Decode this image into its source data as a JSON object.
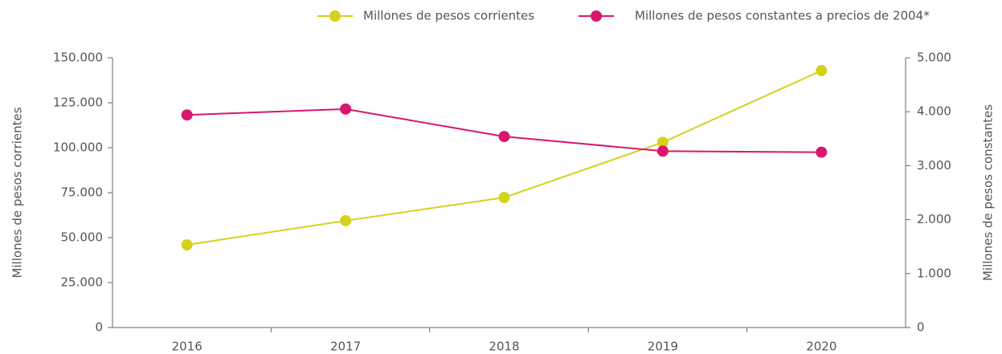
{
  "chart_data": {
    "type": "line",
    "categories": [
      "2016",
      "2017",
      "2018",
      "2019",
      "2020"
    ],
    "y_label": "Millones de pesos corrientes",
    "y2_label": "Millones de pesos constantes",
    "series": [
      {
        "name": "Millones de pesos corrientes",
        "color": "#d4d21a",
        "values": [
          46000,
          59400,
          72300,
          103000,
          142900
        ]
      },
      {
        "name": "Millones de pesos constantes a precios de 2004*",
        "color": "#d9176e",
        "axis": "y2",
        "values": [
          3940,
          4050,
          3540,
          3270,
          3250
        ]
      }
    ],
    "ylim": [
      0,
      150000
    ],
    "yticks": [
      0,
      {
        "value": 25000,
        "label": "25.000"
      },
      {
        "value": 50000,
        "label": "50.000"
      },
      {
        "value": 75000,
        "label": "75.000"
      },
      {
        "value": 100000,
        "label": "100.000"
      },
      {
        "value": 125000,
        "label": "125.000"
      },
      {
        "value": 150000,
        "label": "150.000"
      }
    ],
    "y2lim": [
      0,
      5000
    ],
    "y2ticks": [
      0,
      {
        "value": 1000,
        "label": "1.000"
      },
      {
        "value": 2000,
        "label": "2.000"
      },
      {
        "value": 3000,
        "label": "3.000"
      },
      {
        "value": 4000,
        "label": "4.000"
      },
      {
        "value": 5000,
        "label": "5.000"
      }
    ],
    "legend": "top-right",
    "grid": false
  }
}
